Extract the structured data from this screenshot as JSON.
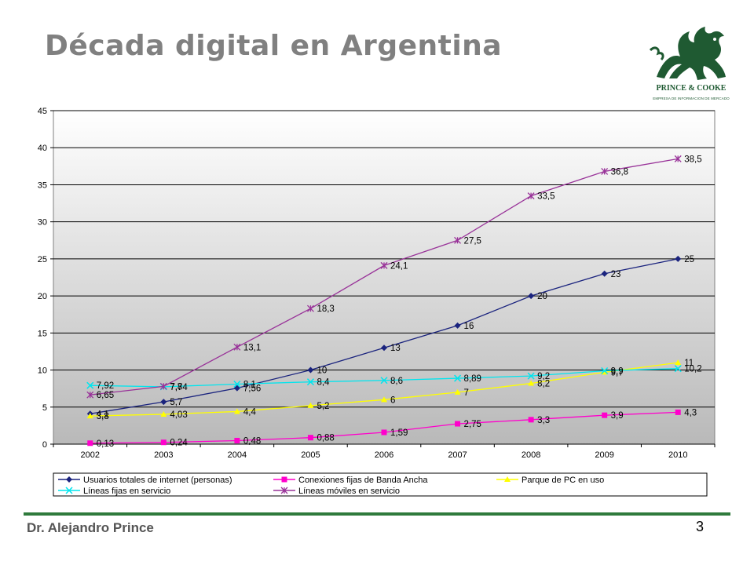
{
  "slide": {
    "title": "Década digital en Argentina",
    "author": "Dr. Alejandro Prince",
    "page_number": "3"
  },
  "logo": {
    "name": "PRINCE & COOKE",
    "tagline": "EMPRESA DE INFORMACION DE MERCADO",
    "icon": "dragon-icon",
    "color": "#1f5a32"
  },
  "chart_data": {
    "type": "line",
    "title": "",
    "xlabel": "",
    "ylabel": "",
    "ylim": [
      0,
      45
    ],
    "yticks": [
      "0",
      "5",
      "10",
      "15",
      "20",
      "25",
      "30",
      "35",
      "40",
      "45"
    ],
    "categories": [
      "2002",
      "2003",
      "2004",
      "2005",
      "2006",
      "2007",
      "2008",
      "2009",
      "2010"
    ],
    "grid": true,
    "legend_position": "bottom",
    "series": [
      {
        "name": "Usuarios totales de internet (personas)",
        "color": "#1a237e",
        "marker": "diamond",
        "values": [
          4.1,
          5.7,
          7.56,
          10,
          13,
          16,
          20,
          23,
          25
        ],
        "labels": [
          "4,1",
          "5,7",
          "7,56",
          "10",
          "13",
          "16",
          "20",
          "23",
          "25"
        ]
      },
      {
        "name": "Conexiones fijas de Banda Ancha",
        "color": "#ff00cc",
        "marker": "square",
        "values": [
          0.13,
          0.24,
          0.48,
          0.88,
          1.59,
          2.75,
          3.3,
          3.9,
          4.3
        ],
        "labels": [
          "0,13",
          "0,24",
          "0,48",
          "0,88",
          "1,59",
          "2,75",
          "3,3",
          "3,9",
          "4,3"
        ]
      },
      {
        "name": "Parque de PC en uso",
        "color": "#ffff00",
        "marker": "triangle",
        "values": [
          3.8,
          4.03,
          4.4,
          5.2,
          6,
          7,
          8.2,
          9.7,
          11
        ],
        "labels": [
          "3,8",
          "4,03",
          "4,4",
          "5,2",
          "6",
          "7",
          "8,2",
          "9,7",
          "11"
        ]
      },
      {
        "name": "Líneas fijas en servicio",
        "color": "#00e5ee",
        "marker": "x",
        "values": [
          7.92,
          7.74,
          8.1,
          8.4,
          8.6,
          8.89,
          9.2,
          9.9,
          10.2
        ],
        "labels": [
          "7,92",
          "7,74",
          "8,1",
          "8,4",
          "8,6",
          "8,89",
          "9,2",
          "9,9",
          "10,2"
        ]
      },
      {
        "name": "Líneas móviles en servicio",
        "color": "#993399",
        "marker": "star",
        "values": [
          6.65,
          7.8,
          13.1,
          18.3,
          24.1,
          27.5,
          33.5,
          36.8,
          38.5
        ],
        "labels": [
          "6,65",
          "7,8",
          "13,1",
          "18,3",
          "24,1",
          "27,5",
          "33,5",
          "36,8",
          "38,5"
        ]
      }
    ]
  }
}
